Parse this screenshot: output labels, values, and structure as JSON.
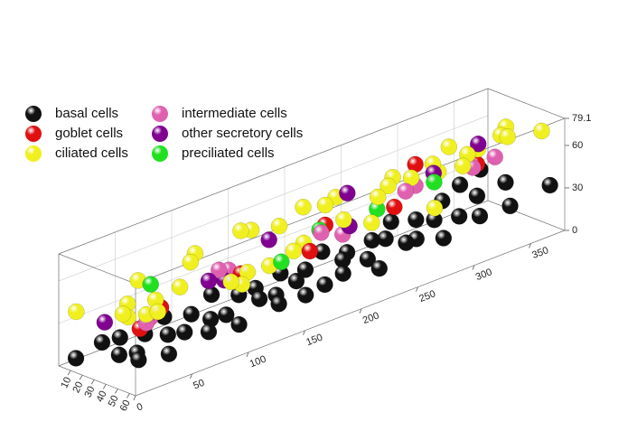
{
  "chart_data": {
    "type": "scatter3d",
    "series": [
      {
        "name": "basal cells",
        "color": "#111111",
        "x": [
          10,
          30,
          50,
          70,
          90,
          110,
          130,
          150,
          170,
          190,
          210,
          230,
          250,
          270,
          290,
          310,
          330,
          350,
          370,
          20,
          40,
          60,
          80,
          100,
          120,
          140,
          160,
          180,
          200,
          220,
          240,
          260,
          280,
          300,
          320,
          340,
          360,
          10,
          40,
          70,
          100,
          130,
          160,
          190,
          220,
          250,
          280,
          310,
          340,
          370
        ],
        "y": [
          5,
          8,
          4,
          6,
          3,
          7,
          5,
          9,
          4,
          6,
          8,
          3,
          5,
          7,
          4,
          6,
          9,
          5,
          3,
          32,
          28,
          35,
          30,
          33,
          27,
          36,
          31,
          29,
          34,
          30,
          32,
          28,
          35,
          31,
          33,
          29,
          34,
          58,
          55,
          60,
          57,
          62,
          56,
          59,
          61,
          55,
          58,
          60,
          57,
          62
        ],
        "z": [
          4,
          10,
          6,
          3,
          8,
          5,
          12,
          7,
          4,
          9,
          6,
          11,
          5,
          8,
          14,
          10,
          18,
          22,
          26,
          12,
          6,
          15,
          9,
          13,
          8,
          16,
          11,
          14,
          7,
          17,
          12,
          19,
          15,
          21,
          18,
          25,
          30,
          20,
          14,
          22,
          17,
          24,
          19,
          26,
          21,
          28,
          23,
          30,
          27,
          34
        ]
      },
      {
        "name": "goblet cells",
        "color": "#e01010",
        "x": [
          30,
          80,
          130,
          170,
          215,
          250,
          300,
          365
        ],
        "y": [
          40,
          10,
          30,
          50,
          20,
          45,
          15,
          5
        ],
        "z": [
          30,
          20,
          35,
          45,
          40,
          50,
          55,
          32
        ]
      },
      {
        "name": "ciliated cells",
        "color": "#f0f020",
        "x": [
          5,
          15,
          25,
          40,
          55,
          65,
          80,
          95,
          105,
          120,
          135,
          145,
          160,
          175,
          185,
          200,
          215,
          225,
          240,
          255,
          265,
          280,
          295,
          305,
          320,
          335,
          345,
          360,
          370,
          375,
          30,
          70,
          110,
          150,
          190,
          230,
          270,
          310,
          350,
          20
        ],
        "y": [
          10,
          40,
          60,
          20,
          50,
          5,
          35,
          55,
          15,
          45,
          25,
          60,
          10,
          40,
          30,
          50,
          20,
          55,
          5,
          35,
          45,
          15,
          60,
          25,
          40,
          10,
          50,
          30,
          55,
          20,
          30,
          15,
          50,
          35,
          5,
          45,
          60,
          25,
          20,
          55
        ],
        "z": [
          40,
          45,
          50,
          38,
          55,
          42,
          60,
          48,
          52,
          44,
          62,
          56,
          50,
          46,
          65,
          58,
          54,
          68,
          47,
          60,
          66,
          52,
          70,
          57,
          64,
          55,
          72,
          62,
          70,
          60,
          35,
          30,
          40,
          36,
          42,
          45,
          48,
          50,
          52,
          48
        ]
      },
      {
        "name": "intermediate cells",
        "color": "#e060b0",
        "x": [
          20,
          60,
          100,
          140,
          180,
          220,
          260,
          300,
          330,
          360
        ],
        "y": [
          55,
          20,
          40,
          10,
          50,
          30,
          45,
          15,
          35,
          25
        ],
        "z": [
          42,
          22,
          50,
          28,
          55,
          35,
          58,
          40,
          50,
          45
        ]
      },
      {
        "name": "other secretory cells",
        "color": "#800090",
        "x": [
          25,
          70,
          110,
          160,
          205,
          245,
          290,
          340
        ],
        "y": [
          15,
          60,
          35,
          25,
          50,
          10,
          40,
          30
        ],
        "z": [
          28,
          58,
          38,
          48,
          52,
          50,
          60,
          62
        ]
      },
      {
        "name": "preciliated cells",
        "color": "#20e020",
        "x": [
          50,
          150,
          210,
          240,
          280
        ],
        "y": [
          30,
          45,
          20,
          40,
          50
        ],
        "z": [
          52,
          42,
          38,
          50,
          60
        ]
      }
    ],
    "xlim": [
      0,
      380
    ],
    "xticks": [
      0,
      50,
      100,
      150,
      200,
      250,
      300,
      350
    ],
    "ylim": [
      0,
      65
    ],
    "yticks": [
      10,
      20,
      30,
      40,
      50,
      60
    ],
    "zlim": [
      0,
      79.1
    ],
    "zticks": [
      0,
      30,
      60,
      79.1
    ]
  }
}
